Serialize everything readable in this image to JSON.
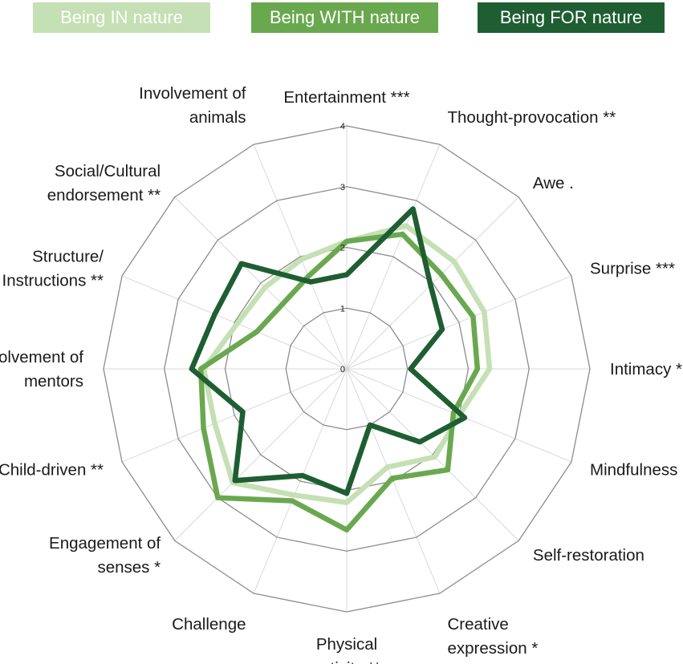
{
  "chart_data": {
    "type": "radar",
    "title": "",
    "rlim": [
      0,
      4
    ],
    "rticks": [
      "0",
      "1",
      "2",
      "3",
      "4"
    ],
    "grid": true,
    "legend_position": "top",
    "axes": [
      [
        "Entertainment ***"
      ],
      [
        "Thought-provocation **"
      ],
      [
        "Awe ."
      ],
      [
        "Surprise ***"
      ],
      [
        "Intimacy *"
      ],
      [
        "Mindfulness"
      ],
      [
        "Self-restoration"
      ],
      [
        "Creative",
        "expression *"
      ],
      [
        "Physical",
        "activity **"
      ],
      [
        "Challenge"
      ],
      [
        "Engagement of",
        "senses *"
      ],
      [
        "Child-driven **"
      ],
      [
        "Involvement of",
        "mentors"
      ],
      [
        "Structure/",
        "Instructions **"
      ],
      [
        "Social/Cultural",
        "endorsement **"
      ],
      [
        "Involvement of",
        "animals"
      ]
    ],
    "series": [
      {
        "name": "Being IN nature",
        "color": "#c5e0b4",
        "values": [
          2.1,
          2.55,
          2.5,
          2.45,
          2.35,
          2.0,
          2.05,
          1.75,
          2.2,
          2.25,
          2.65,
          2.35,
          2.35,
          1.95,
          1.9,
          1.95
        ]
      },
      {
        "name": "Being WITH nature",
        "color": "#6aa84f",
        "values": [
          2.1,
          2.4,
          2.2,
          2.25,
          2.15,
          1.9,
          2.35,
          1.95,
          2.65,
          2.35,
          3.0,
          2.55,
          2.4,
          1.6,
          1.5,
          1.65
        ]
      },
      {
        "name": "Being FOR nature",
        "color": "#1e5e32",
        "values": [
          1.55,
          2.85,
          1.95,
          1.7,
          1.05,
          2.1,
          1.7,
          1.0,
          2.05,
          1.9,
          2.6,
          1.85,
          2.55,
          2.35,
          2.45,
          1.55
        ]
      }
    ]
  }
}
